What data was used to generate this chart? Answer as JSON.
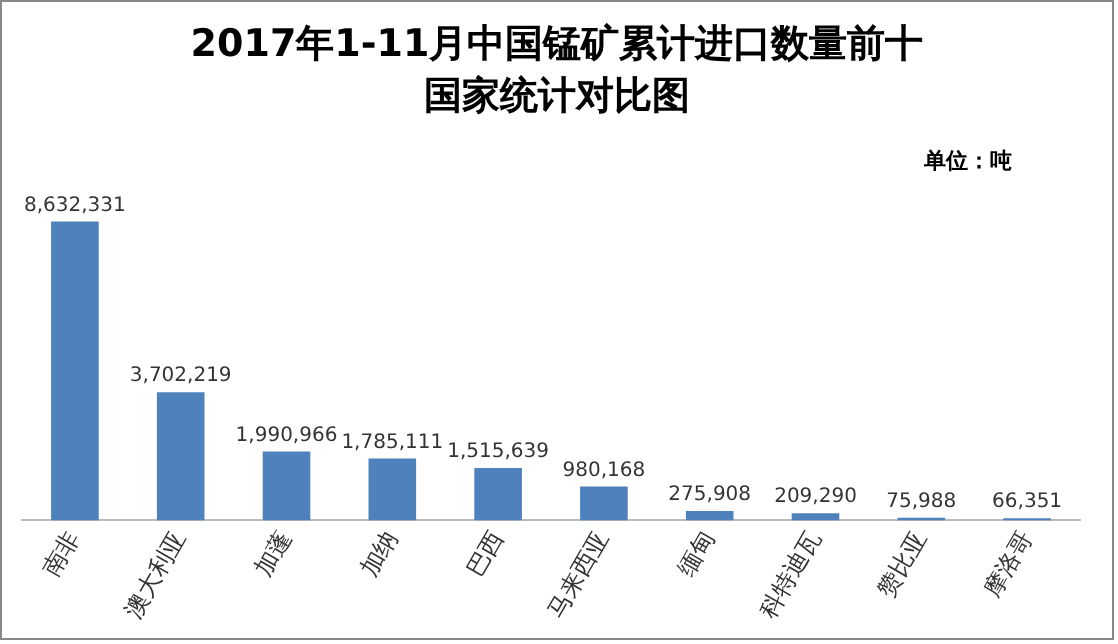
{
  "chart_data": {
    "type": "bar",
    "title": "2017年1-11月中国锰矿累计进口数量前十国家统计对比图",
    "annotations": [
      "单位：吨"
    ],
    "categories": [
      "南非",
      "澳大利亚",
      "加蓬",
      "加纳",
      "巴西",
      "马来西亚",
      "缅甸",
      "科特迪瓦",
      "赞比亚",
      "摩洛哥"
    ],
    "values": [
      8632331,
      3702219,
      1990966,
      1785111,
      1515639,
      980168,
      275908,
      209290,
      75988,
      66351
    ],
    "value_labels": [
      "8,632,331",
      "3,702,219",
      "1,990,966",
      "1,785,111",
      "1,515,639",
      "980,168",
      "275,908",
      "209,290",
      "75,988",
      "66,351"
    ],
    "color": "#4f81bd",
    "grid": false,
    "legend": false
  }
}
